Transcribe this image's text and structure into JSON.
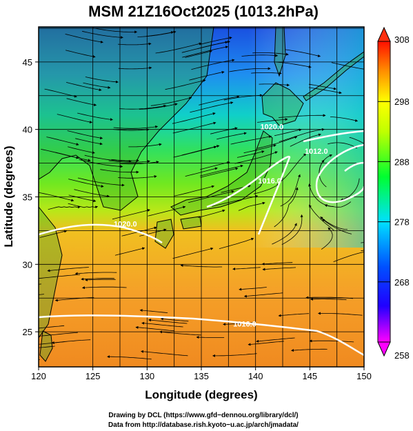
{
  "title": "MSM 21Z16Oct2025 (1013.2hPa)",
  "xlabel": "Longitude (degrees)",
  "ylabel": "Latitude  (degrees)",
  "x_ticks": [
    "120",
    "125",
    "130",
    "135",
    "140",
    "145",
    "150"
  ],
  "y_ticks": [
    "25",
    "30",
    "35",
    "40",
    "45"
  ],
  "colorbar": {
    "ticks": [
      "308",
      "298",
      "288",
      "278",
      "268",
      "258"
    ],
    "min": 258,
    "max": 308
  },
  "contours": [
    {
      "label": "1020.0",
      "lon": 141.5,
      "lat": 40.0
    },
    {
      "label": "1016.0",
      "lon": 141.3,
      "lat": 36.0
    },
    {
      "label": "1012.0",
      "lon": 145.6,
      "lat": 38.2
    },
    {
      "label": "1020.0",
      "lon": 128.0,
      "lat": 32.8
    },
    {
      "label": "1016.0",
      "lon": 139.0,
      "lat": 25.4
    }
  ],
  "footer": {
    "line1": "Drawing by DCL (https://www.gfd−dennou.org/library/dcl/)",
    "line2": "Data from http://database.rish.kyoto−u.ac.jp/arch/jmadata/"
  },
  "chart_data": {
    "type": "heatmap",
    "title": "MSM 21Z16Oct2025 (1013.2hPa)",
    "xlabel": "Longitude (degrees)",
    "ylabel": "Latitude  (degrees)",
    "xlim": [
      120,
      150
    ],
    "ylim": [
      22.4,
      47.6
    ],
    "colorbar_range": [
      258,
      308
    ],
    "colors": [
      "#ff00ff",
      "#0000ff",
      "#00a0ff",
      "#00ff80",
      "#80ff00",
      "#ffff00",
      "#ffa000",
      "#ff0000"
    ],
    "overlays": [
      "coastlines",
      "wind streamlines",
      "pressure contours",
      "grid"
    ]
  }
}
